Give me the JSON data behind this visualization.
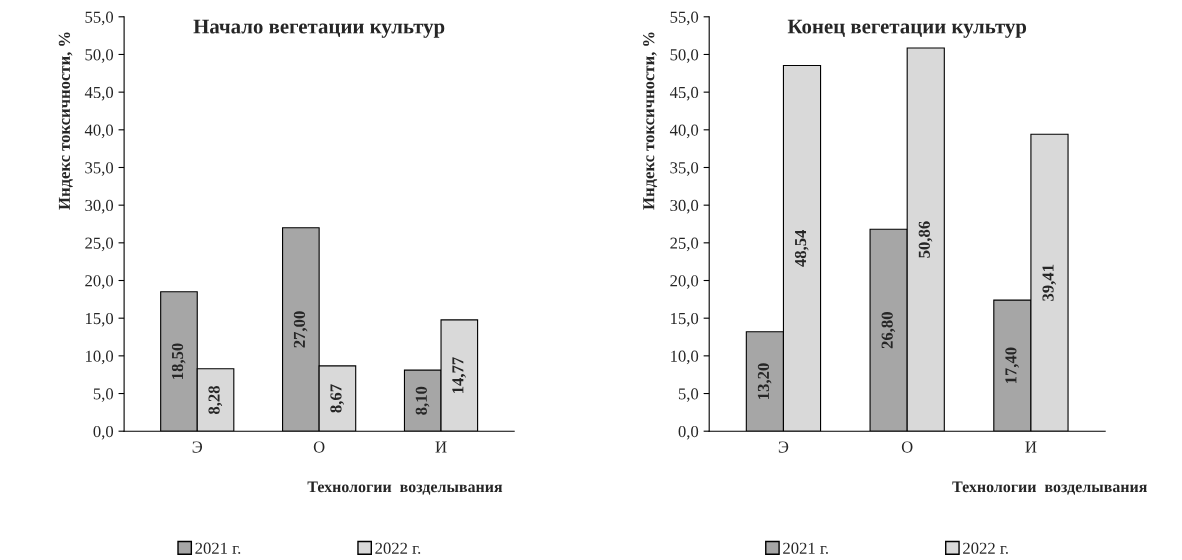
{
  "chart_data": [
    {
      "type": "bar",
      "title": "Начало вегетации культур",
      "xlabel": "Технологии  возделывания",
      "ylabel": "Индекс токсичности, %",
      "categories": [
        "Э",
        "О",
        "И"
      ],
      "series": [
        {
          "name": "2021 г.",
          "color": "#a6a6a6",
          "values": [
            18.5,
            27.0,
            8.1
          ],
          "value_labels": [
            "18,50",
            "27,00",
            "8,10"
          ]
        },
        {
          "name": "2022 г.",
          "color": "#d9d9d9",
          "values": [
            8.28,
            8.67,
            14.77
          ],
          "value_labels": [
            "8,28",
            "8,67",
            "14,77"
          ]
        }
      ],
      "ylim": [
        0,
        55
      ],
      "yticks": [
        {
          "value": 0,
          "label": "0,0"
        },
        {
          "value": 5,
          "label": "5,0"
        },
        {
          "value": 10,
          "label": "10,0"
        },
        {
          "value": 15,
          "label": "15,0"
        },
        {
          "value": 20,
          "label": "20,0"
        },
        {
          "value": 25,
          "label": "25,0"
        },
        {
          "value": 30,
          "label": "30,0"
        },
        {
          "value": 35,
          "label": "35,0"
        },
        {
          "value": 40,
          "label": "40,0"
        },
        {
          "value": 45,
          "label": "45,0"
        },
        {
          "value": 50,
          "label": "50,0"
        },
        {
          "value": 55,
          "label": "55,0"
        }
      ],
      "grid": false,
      "legend": "bottom"
    },
    {
      "type": "bar",
      "title": "Конец вегетации культур",
      "xlabel": "Технологии  возделывания",
      "ylabel": "Индекс токсичности, %",
      "categories": [
        "Э",
        "О",
        "И"
      ],
      "series": [
        {
          "name": "2021 г.",
          "color": "#a6a6a6",
          "values": [
            13.2,
            26.8,
            17.4
          ],
          "value_labels": [
            "13,20",
            "26,80",
            "17,40"
          ]
        },
        {
          "name": "2022 г.",
          "color": "#d9d9d9",
          "values": [
            48.54,
            50.86,
            39.41
          ],
          "value_labels": [
            "48,54",
            "50,86",
            "39,41"
          ]
        }
      ],
      "ylim": [
        0,
        55
      ],
      "yticks": [
        {
          "value": 0,
          "label": "0,0"
        },
        {
          "value": 5,
          "label": "5,0"
        },
        {
          "value": 10,
          "label": "10,0"
        },
        {
          "value": 15,
          "label": "15,0"
        },
        {
          "value": 20,
          "label": "20,0"
        },
        {
          "value": 25,
          "label": "25,0"
        },
        {
          "value": 30,
          "label": "30,0"
        },
        {
          "value": 35,
          "label": "35,0"
        },
        {
          "value": 40,
          "label": "40,0"
        },
        {
          "value": 45,
          "label": "45,0"
        },
        {
          "value": 50,
          "label": "50,0"
        },
        {
          "value": 55,
          "label": "55,0"
        }
      ],
      "grid": false,
      "legend": "bottom"
    }
  ]
}
